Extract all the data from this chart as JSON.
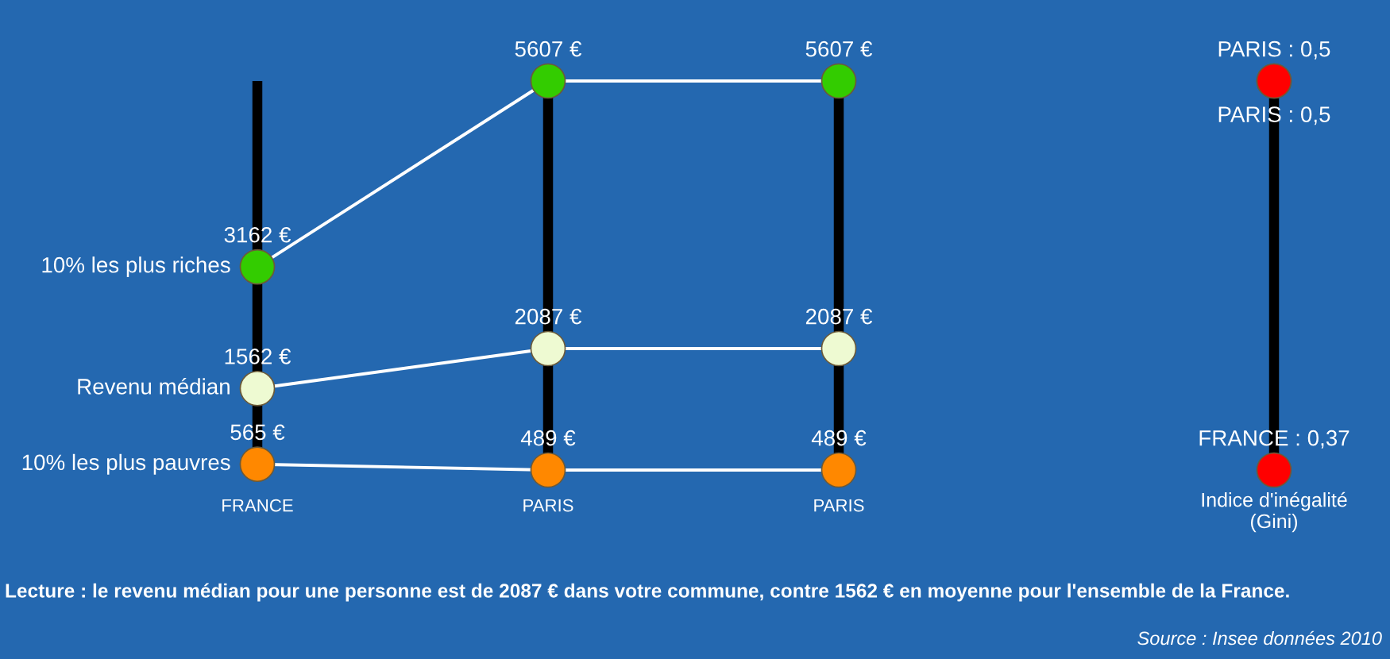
{
  "chart_data": [
    {
      "type": "line",
      "categories": [
        "FRANCE",
        "PARIS",
        "PARIS"
      ],
      "series": [
        {
          "name": "10% les plus riches",
          "color": "#33cc00",
          "values": [
            3162,
            5607,
            5607
          ],
          "value_labels": [
            "3162 €",
            "5607 €",
            "5607 €"
          ]
        },
        {
          "name": "Revenu médian",
          "color": "#eefad2",
          "values": [
            1562,
            2087,
            2087
          ],
          "value_labels": [
            "1562 €",
            "2087 €",
            "2087 €"
          ]
        },
        {
          "name": "10% les plus pauvres",
          "color": "#ff8800",
          "values": [
            565,
            489,
            489
          ],
          "value_labels": [
            "565 €",
            "489 €",
            "489 €"
          ]
        }
      ],
      "ylim": [
        489,
        5607
      ],
      "grid": "x",
      "marker": "circle",
      "tick_labels": "x",
      "annotations": [
        "Lecture : le revenu médian pour une personne est de 2087 € dans votre commune, contre 1562 € en moyenne pour l'ensemble de la France.",
        "Source : Insee données 2010"
      ]
    },
    {
      "type": "other",
      "categories": [
        "Indice d'inégalité\n(Gini)"
      ],
      "series": [
        {
          "color": "#ff0000",
          "values": [
            0.37
          ],
          "value_labels": [
            "FRANCE : 0,37"
          ]
        },
        {
          "color": "#ff0000",
          "values": [
            0.5
          ],
          "value_labels": [
            "PARIS : 0,5"
          ]
        },
        {
          "color": "#ff0000",
          "values": [
            0.5
          ],
          "value_labels": [
            "PARIS : 0,5"
          ]
        }
      ]
    }
  ]
}
